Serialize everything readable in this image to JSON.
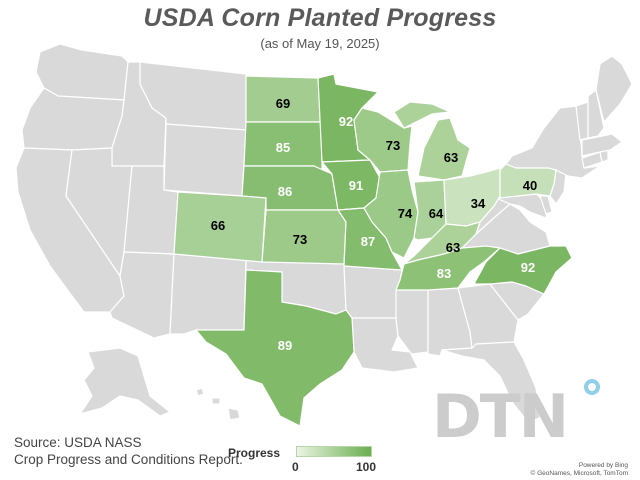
{
  "title": "USDA Corn Planted Progress",
  "subtitle": "(as of May 19, 2025)",
  "source": {
    "line1": "Source: USDA NASS",
    "line2": "Crop Progress and Conditions Report."
  },
  "legend": {
    "title": "Progress",
    "min_label": "0",
    "max_label": "100",
    "min_color": "#eaf4e2",
    "max_color": "#6aae4f"
  },
  "logo": "DTN",
  "credit": {
    "line1": "Powered by Bing",
    "line2": "© GeoNames, Microsoft, TomTom"
  },
  "colors": {
    "no_data": "#d9d9d9",
    "scale_low": "#eaf4e2",
    "scale_high": "#6aae4f",
    "label_dark": "#000000",
    "label_light": "#ffffff"
  },
  "states": [
    {
      "id": "ND",
      "value": 69
    },
    {
      "id": "SD",
      "value": 85
    },
    {
      "id": "NE",
      "value": 86
    },
    {
      "id": "KS",
      "value": 73
    },
    {
      "id": "CO",
      "value": 66
    },
    {
      "id": "TX",
      "value": 89
    },
    {
      "id": "MN",
      "value": 92
    },
    {
      "id": "IA",
      "value": 91
    },
    {
      "id": "MO",
      "value": 87
    },
    {
      "id": "WI",
      "value": 73
    },
    {
      "id": "IL",
      "value": 74
    },
    {
      "id": "IN",
      "value": 64
    },
    {
      "id": "MI",
      "value": 63
    },
    {
      "id": "OH",
      "value": 34
    },
    {
      "id": "KY",
      "value": 63
    },
    {
      "id": "TN",
      "value": 83
    },
    {
      "id": "NC",
      "value": 92
    },
    {
      "id": "PA",
      "value": 40
    }
  ]
}
